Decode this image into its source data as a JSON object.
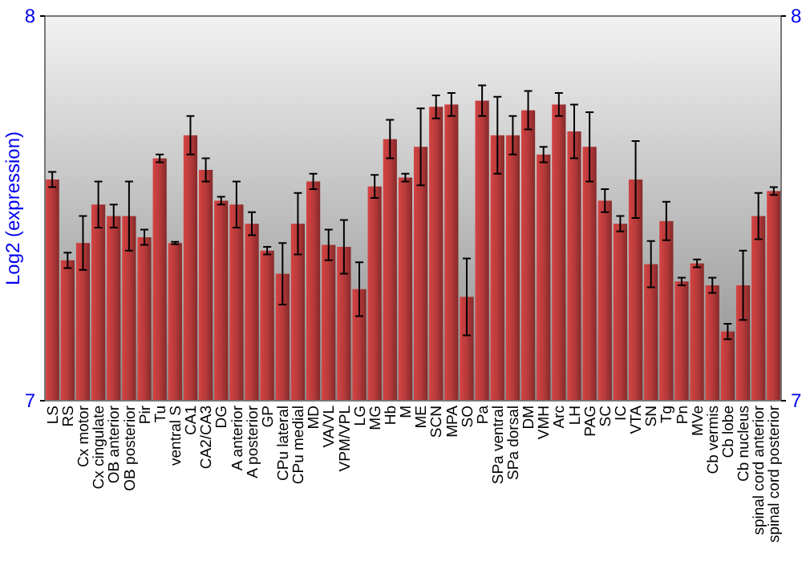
{
  "chart_data": {
    "type": "bar",
    "ylabel": "Log2 (expression)",
    "categories": [
      "LS",
      "RS",
      "Cx motor",
      "Cx cingulate",
      "OB anterior",
      "OB posterior",
      "Pir",
      "Tu",
      "ventral S",
      "CA1",
      "CA2/CA3",
      "DG",
      "A anterior",
      "A posterior",
      "GP",
      "CPu lateral",
      "CPu medial",
      "MD",
      "VA/VL",
      "VPM/VPL",
      "LG",
      "MG",
      "Hb",
      "M",
      "ME",
      "SCN",
      "MPA",
      "SO",
      "Pa",
      "SPa ventral",
      "SPa dorsal",
      "DM",
      "VMH",
      "Arc",
      "LH",
      "PAG",
      "SC",
      "IC",
      "VTA",
      "SN",
      "Tg",
      "Pn",
      "MVe",
      "Cb vermis",
      "Cb lobe",
      "Cb nucleus",
      "spinal cord anterior",
      "spinal cord posterior"
    ],
    "values": [
      7.575,
      7.365,
      7.41,
      7.51,
      7.48,
      7.48,
      7.425,
      7.63,
      7.41,
      7.69,
      7.6,
      7.52,
      7.51,
      7.46,
      7.39,
      7.33,
      7.46,
      7.57,
      7.405,
      7.4,
      7.29,
      7.557,
      7.68,
      7.58,
      7.66,
      7.764,
      7.77,
      7.27,
      7.78,
      7.69,
      7.69,
      7.755,
      7.64,
      7.77,
      7.7,
      7.66,
      7.52,
      7.46,
      7.575,
      7.355,
      7.467,
      7.31,
      7.357,
      7.3,
      7.18,
      7.3,
      7.48,
      7.545
    ],
    "errors": [
      0.02,
      0.02,
      0.07,
      0.06,
      0.03,
      0.09,
      0.02,
      0.01,
      0.003,
      0.05,
      0.03,
      0.01,
      0.06,
      0.03,
      0.01,
      0.08,
      0.08,
      0.02,
      0.04,
      0.07,
      0.07,
      0.03,
      0.05,
      0.01,
      0.1,
      0.03,
      0.03,
      0.1,
      0.04,
      0.1,
      0.05,
      0.05,
      0.02,
      0.03,
      0.07,
      0.09,
      0.03,
      0.02,
      0.1,
      0.06,
      0.05,
      0.01,
      0.01,
      0.02,
      0.02,
      0.09,
      0.06,
      0.01
    ],
    "color": "#b83a3a",
    "ylim": [
      7,
      8
    ],
    "yticks": [
      7,
      8
    ],
    "y2lim": [
      7,
      8
    ],
    "y2ticks": [
      7,
      8
    ]
  }
}
